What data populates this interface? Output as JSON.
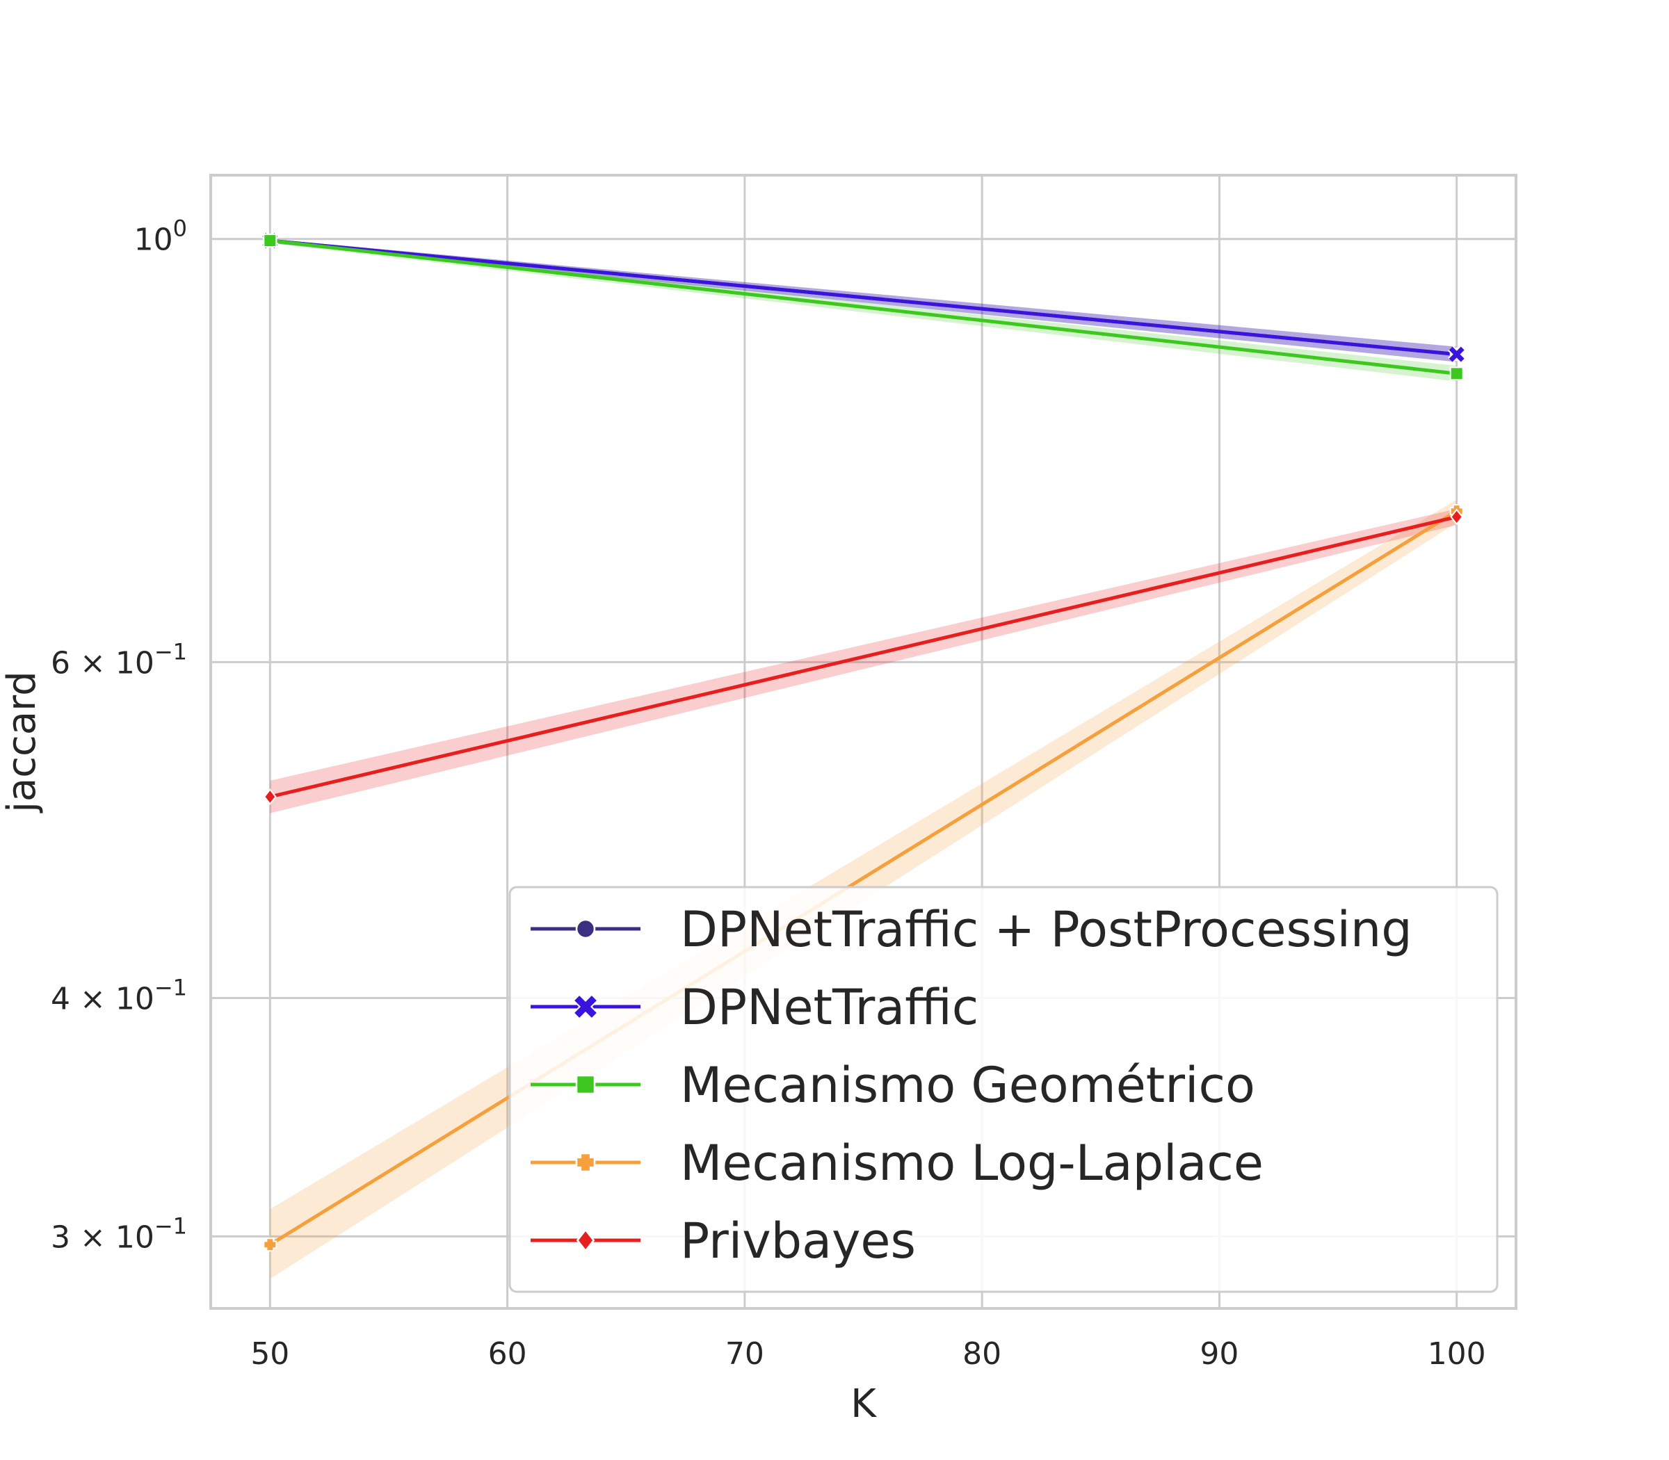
{
  "chart_data": {
    "type": "line",
    "title": "",
    "xlabel": "K",
    "ylabel": "jaccard",
    "x": [
      50,
      100
    ],
    "xticks": [
      "50",
      "60",
      "70",
      "80",
      "90",
      "100"
    ],
    "xtick_values": [
      50,
      60,
      70,
      80,
      90,
      100
    ],
    "xlim": [
      47.5,
      102.5
    ],
    "yscale": "log",
    "ylim": [
      0.275,
      1.08
    ],
    "yticks": [
      {
        "value": 1.0,
        "mant": "",
        "base": "10",
        "exp": "0"
      },
      {
        "value": 0.6,
        "mant": "6 × ",
        "base": "10",
        "exp": "−1"
      },
      {
        "value": 0.4,
        "mant": "4 × ",
        "base": "10",
        "exp": "−1"
      },
      {
        "value": 0.3,
        "mant": "3 × ",
        "base": "10",
        "exp": "−1"
      }
    ],
    "grid": true,
    "legend_position": "lower-right",
    "series": [
      {
        "name": "DPNetTraffic + PostProcessing",
        "values": [
          0.998,
          0.87
        ],
        "band": [
          [
            0.995,
            1.0
          ],
          [
            0.862,
            0.878
          ]
        ],
        "color": "#3a2f80",
        "marker": "circle"
      },
      {
        "name": "DPNetTraffic",
        "values": [
          0.998,
          0.87
        ],
        "band": [
          [
            0.995,
            1.0
          ],
          [
            0.862,
            0.878
          ]
        ],
        "color": "#3a14dc",
        "marker": "x"
      },
      {
        "name": "Mecanismo Geométrico",
        "values": [
          0.998,
          0.85
        ],
        "band": [
          [
            0.995,
            1.0
          ],
          [
            0.842,
            0.858
          ]
        ],
        "color": "#3cc81e",
        "marker": "square"
      },
      {
        "name": "Mecanismo Log-Laplace",
        "values": [
          0.297,
          0.72
        ],
        "band": [
          [
            0.285,
            0.31
          ],
          [
            0.71,
            0.73
          ]
        ],
        "color": "#f5a03c",
        "marker": "plus"
      },
      {
        "name": "Privbayes",
        "values": [
          0.51,
          0.715
        ],
        "band": [
          [
            0.5,
            0.52
          ],
          [
            0.708,
            0.722
          ]
        ],
        "color": "#e61e1e",
        "marker": "diamond"
      }
    ]
  }
}
